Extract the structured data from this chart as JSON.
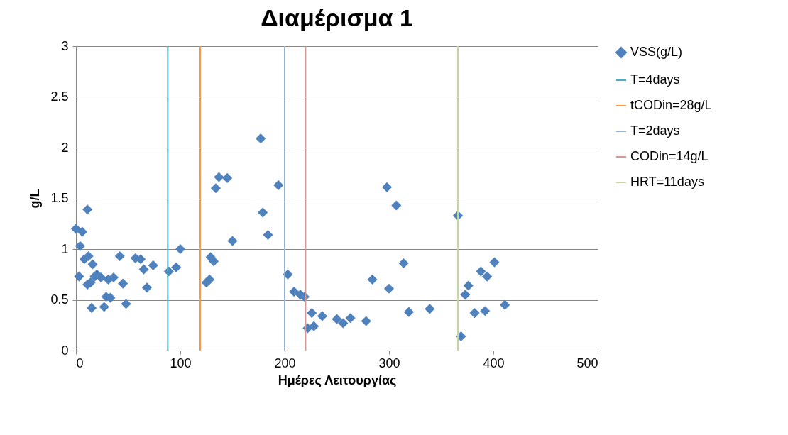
{
  "chart_data": {
    "type": "scatter",
    "title": "Διαμέρισμα 1",
    "xlabel": "Ημέρες Λειτουργίας",
    "ylabel": "g/L",
    "xlim": [
      0,
      500
    ],
    "xticks": [
      0,
      100,
      200,
      300,
      400,
      500
    ],
    "ylim": [
      0,
      3
    ],
    "yticks": [
      0,
      0.5,
      1,
      1.5,
      2,
      2.5,
      3
    ],
    "grid": "y",
    "legend": "right",
    "x": [
      0,
      3,
      4,
      6,
      8,
      11,
      11,
      12,
      14,
      15,
      16,
      18,
      20,
      24,
      27,
      29,
      31,
      33,
      36,
      42,
      45,
      48,
      57,
      62,
      65,
      68,
      74,
      89,
      96,
      100,
      125,
      128,
      129,
      132,
      134,
      137,
      145,
      150,
      177,
      179,
      184,
      194,
      203,
      209,
      215,
      219,
      222,
      226,
      228,
      236,
      250,
      256,
      263,
      278,
      284,
      298,
      300,
      307,
      314,
      319,
      339,
      366,
      369,
      373,
      376,
      382,
      388,
      392,
      394,
      401,
      411
    ],
    "series": [
      {
        "name": "VSS(g/L)",
        "marker": "diamond",
        "color": "#4f81bd",
        "values": [
          1.2,
          0.73,
          1.03,
          1.17,
          0.9,
          1.39,
          0.65,
          0.93,
          0.67,
          0.42,
          0.85,
          0.73,
          0.75,
          0.72,
          0.43,
          0.53,
          0.7,
          0.52,
          0.72,
          0.93,
          0.66,
          0.46,
          0.91,
          0.9,
          0.8,
          0.62,
          0.84,
          0.78,
          0.82,
          1.0,
          0.67,
          0.7,
          0.92,
          0.88,
          1.6,
          1.71,
          1.7,
          1.08,
          2.09,
          1.36,
          1.14,
          1.63,
          0.75,
          0.58,
          0.55,
          0.53,
          0.22,
          0.37,
          0.24,
          0.34,
          0.31,
          0.27,
          0.32,
          0.29,
          0.7,
          1.61,
          0.61,
          1.43,
          0.86,
          0.38,
          0.41,
          1.33,
          0.14,
          0.55,
          0.64,
          0.37,
          0.78,
          0.39,
          0.73,
          0.87,
          0.45
        ]
      },
      {
        "name": "T=4days",
        "type": "line",
        "marker": "none",
        "color": "#4bacc6",
        "x": [
          88,
          88
        ],
        "values": [
          0,
          3
        ]
      },
      {
        "name": "tCODin=28g/L",
        "type": "line",
        "marker": "none",
        "color": "#f79646",
        "x": [
          119,
          119
        ],
        "values": [
          0,
          3
        ]
      },
      {
        "name": "T=2days",
        "type": "line",
        "marker": "none",
        "color": "#95b3d7",
        "x": [
          200,
          200
        ],
        "values": [
          0,
          3
        ]
      },
      {
        "name": "CODin=14g/L",
        "type": "line",
        "marker": "none",
        "color": "#d99694",
        "x": [
          220,
          220
        ],
        "values": [
          0,
          3
        ]
      },
      {
        "name": "HRT=11days",
        "type": "line",
        "marker": "none",
        "color": "#c3d69b",
        "x": [
          366,
          366
        ],
        "values": [
          0,
          3
        ]
      }
    ]
  }
}
